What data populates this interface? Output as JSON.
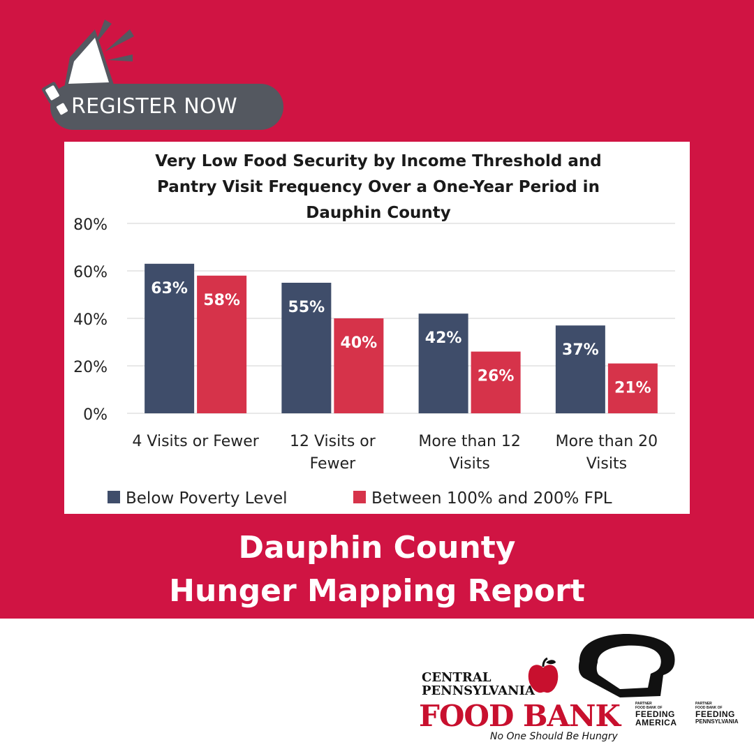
{
  "register": {
    "label": "REGISTER NOW"
  },
  "headline": {
    "line1": "Dauphin County",
    "line2": "Hunger Mapping Report"
  },
  "colors": {
    "background": "#d01443",
    "badge": "#545860",
    "series1": "#3f4d6a",
    "series2": "#d6334a"
  },
  "chart_data": {
    "type": "bar",
    "title_lines": [
      "Very Low Food Security by Income Threshold and",
      "Pantry Visit Frequency Over a One-Year Period in",
      "Dauphin County"
    ],
    "categories": [
      [
        "4 Visits or Fewer"
      ],
      [
        "12 Visits or",
        "Fewer"
      ],
      [
        "More than 12",
        "Visits"
      ],
      [
        "More than 20",
        "Visits"
      ]
    ],
    "series": [
      {
        "name": "Below Poverty Level",
        "values": [
          63,
          55,
          42,
          37
        ],
        "labels": [
          "63%",
          "55%",
          "42%",
          "37%"
        ],
        "color": "#3f4d6a"
      },
      {
        "name": "Between 100% and 200% FPL",
        "values": [
          58,
          40,
          26,
          21
        ],
        "labels": [
          "58%",
          "40%",
          "26%",
          "21%"
        ],
        "color": "#d6334a"
      }
    ],
    "yticks": [
      "0%",
      "20%",
      "40%",
      "60%",
      "80%"
    ],
    "ytick_values": [
      0,
      20,
      40,
      60,
      80
    ],
    "ylim": [
      0,
      80
    ],
    "grid": true,
    "legend_position": "bottom"
  },
  "logo": {
    "line1": "CENTRAL",
    "line2": "PENNSYLVANIA",
    "name": "FOOD BANK",
    "tagline": "No One Should Be Hungry",
    "partner1_small1": "PARTNER",
    "partner1_small2": "FOOD BANK OF",
    "partner1_big1": "FEEDING",
    "partner1_big2": "AMERICA",
    "partner2_small1": "PARTNER",
    "partner2_small2": "FOOD BANK OF",
    "partner2_big1": "FEEDING",
    "partner2_big2": "PENNSYLVANIA"
  }
}
